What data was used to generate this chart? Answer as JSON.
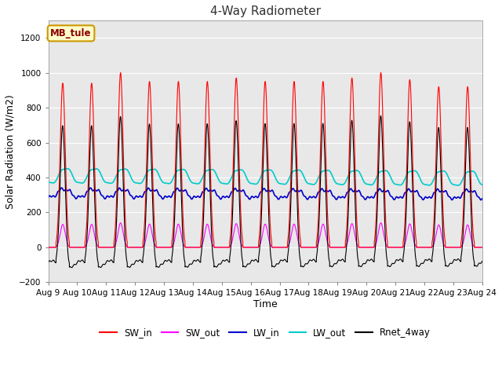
{
  "title": "4-Way Radiometer",
  "xlabel": "Time",
  "ylabel": "Solar Radiation (W/m2)",
  "ylim": [
    -200,
    1300
  ],
  "yticks": [
    -200,
    0,
    200,
    400,
    600,
    800,
    1000,
    1200
  ],
  "xtick_labels": [
    "Aug 9",
    "Aug 10",
    "Aug 11",
    "Aug 12",
    "Aug 13",
    "Aug 14",
    "Aug 15",
    "Aug 16",
    "Aug 17",
    "Aug 18",
    "Aug 19",
    "Aug 20",
    "Aug 21",
    "Aug 22",
    "Aug 23",
    "Aug 24"
  ],
  "annotation_text": "MB_tule",
  "annotation_bg": "#ffffcc",
  "annotation_border": "#cc9900",
  "colors": {
    "SW_in": "#ff0000",
    "SW_out": "#ff00ff",
    "LW_in": "#0000cc",
    "LW_out": "#00cccc",
    "Rnet_4way": "#000000"
  },
  "legend_labels": [
    "SW_in",
    "SW_out",
    "LW_in",
    "LW_out",
    "Rnet_4way"
  ],
  "fig_bg": "#ffffff",
  "axes_bg": "#e8e8e8",
  "grid_color": "#ffffff",
  "figsize": [
    6.4,
    4.8
  ],
  "dpi": 100
}
